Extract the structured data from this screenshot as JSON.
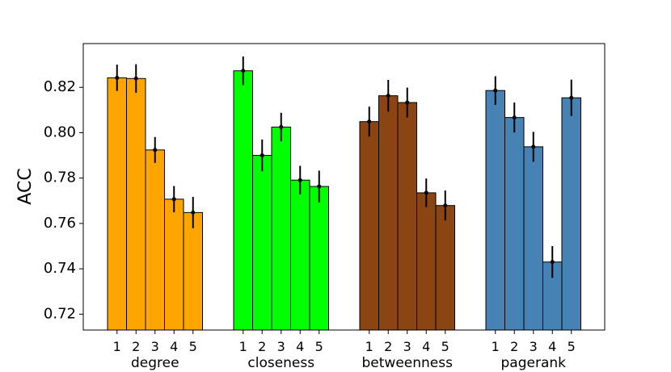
{
  "chart_data": {
    "type": "bar",
    "title": "",
    "xlabel": "",
    "ylabel": "ACC",
    "ylim": [
      0.713,
      0.8393
    ],
    "yticks": [
      "0.72",
      "0.74",
      "0.76",
      "0.78",
      "0.80",
      "0.82"
    ],
    "ytick_values": [
      0.72,
      0.74,
      0.76,
      0.78,
      0.8,
      0.82
    ],
    "grid": false,
    "legend": "none",
    "groups": [
      {
        "name": "degree",
        "color": "#FFA500",
        "bars": [
          "1",
          "2",
          "3",
          "4",
          "5"
        ],
        "values": [
          0.8242,
          0.8239,
          0.7924,
          0.7707,
          0.7648
        ],
        "errors": [
          0.0058,
          0.0063,
          0.0057,
          0.0058,
          0.0069
        ]
      },
      {
        "name": "closeness",
        "color": "#00FF00",
        "bars": [
          "1",
          "2",
          "3",
          "4",
          "5"
        ],
        "values": [
          0.8273,
          0.79,
          0.8025,
          0.7791,
          0.7763
        ],
        "errors": [
          0.0063,
          0.007,
          0.0063,
          0.0063,
          0.007
        ]
      },
      {
        "name": "betweenness",
        "color": "#8B4513",
        "bars": [
          "1",
          "2",
          "3",
          "4",
          "5"
        ],
        "values": [
          0.8049,
          0.8163,
          0.8133,
          0.7735,
          0.7679
        ],
        "errors": [
          0.0066,
          0.007,
          0.0066,
          0.0063,
          0.0066
        ]
      },
      {
        "name": "pagerank",
        "color": "#4682B4",
        "bars": [
          "1",
          "2",
          "3",
          "4",
          "5"
        ],
        "values": [
          0.8186,
          0.8067,
          0.7938,
          0.743,
          0.8154
        ],
        "errors": [
          0.0063,
          0.0066,
          0.0066,
          0.007,
          0.008
        ]
      }
    ]
  }
}
